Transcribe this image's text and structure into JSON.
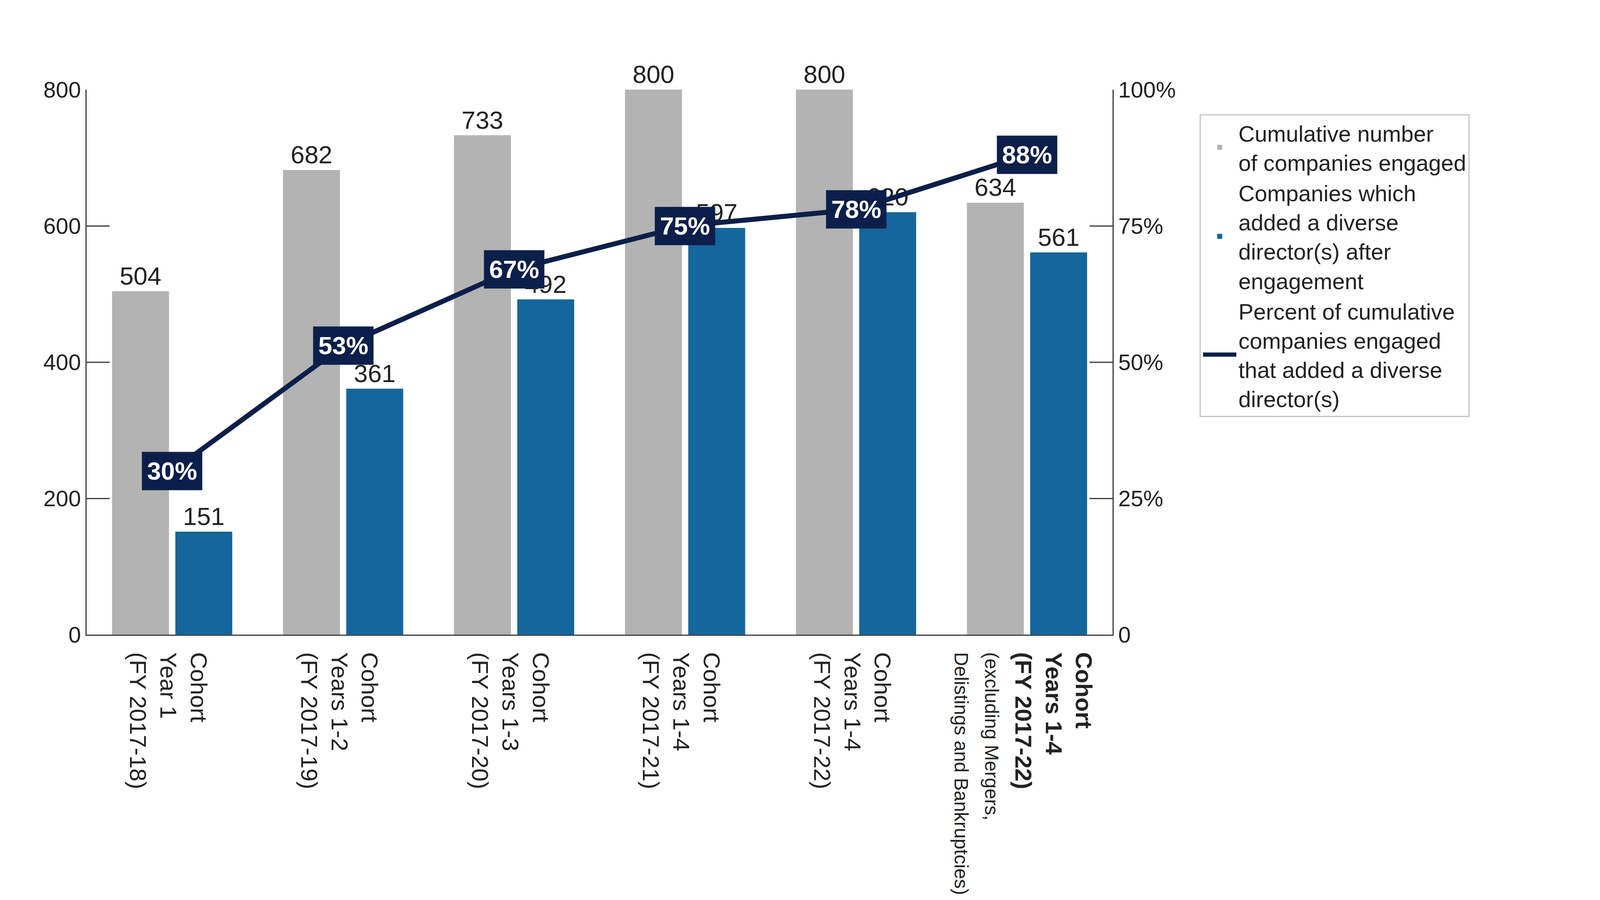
{
  "chart_data": {
    "type": "bar",
    "categories": [
      "Cohort\nYear 1\n(FY 2017-18)",
      "Cohort\nYears 1-2\n(FY 2017-19)",
      "Cohort\nYears 1-3\n(FY 2017-20)",
      "Cohort\nYears 1-4\n(FY 2017-21)",
      "Cohort\nYears 1-4\n(FY 2017-22)",
      "Cohort\nYears 1-4\n(FY 2017-22)\n(excluding Mergers,\nDelistings and Bankruptcies)"
    ],
    "series": [
      {
        "name": "Cumulative number\nof companies engaged",
        "type": "bar",
        "color": "#b3b3b3",
        "values": [
          504,
          682,
          733,
          800,
          800,
          634
        ]
      },
      {
        "name": "Companies which\nadded a diverse\ndirector(s) after\nengagement",
        "type": "bar",
        "color": "#14669c",
        "values": [
          151,
          361,
          492,
          597,
          620,
          561
        ]
      },
      {
        "name": "Percent of cumulative\ncompanies engaged\nthat added a diverse\ndirector(s)",
        "type": "line",
        "axis": "y2",
        "color": "#0c1f4a",
        "values": [
          30,
          53,
          67,
          75,
          78,
          88
        ],
        "value_labels": [
          "30%",
          "53%",
          "67%",
          "75%",
          "78%",
          "88%"
        ]
      }
    ],
    "ylim": [
      0,
      800
    ],
    "yticks": [
      0,
      200,
      400,
      600,
      800
    ],
    "y2lim": [
      0,
      100
    ],
    "y2ticks": [
      0,
      {
        "value": 25,
        "label": "25%"
      },
      {
        "value": 50,
        "label": "50%"
      },
      {
        "value": 75,
        "label": "75%"
      },
      {
        "value": 100,
        "label": "100%"
      }
    ],
    "grid": false,
    "legend": "right",
    "data_labels": true
  }
}
